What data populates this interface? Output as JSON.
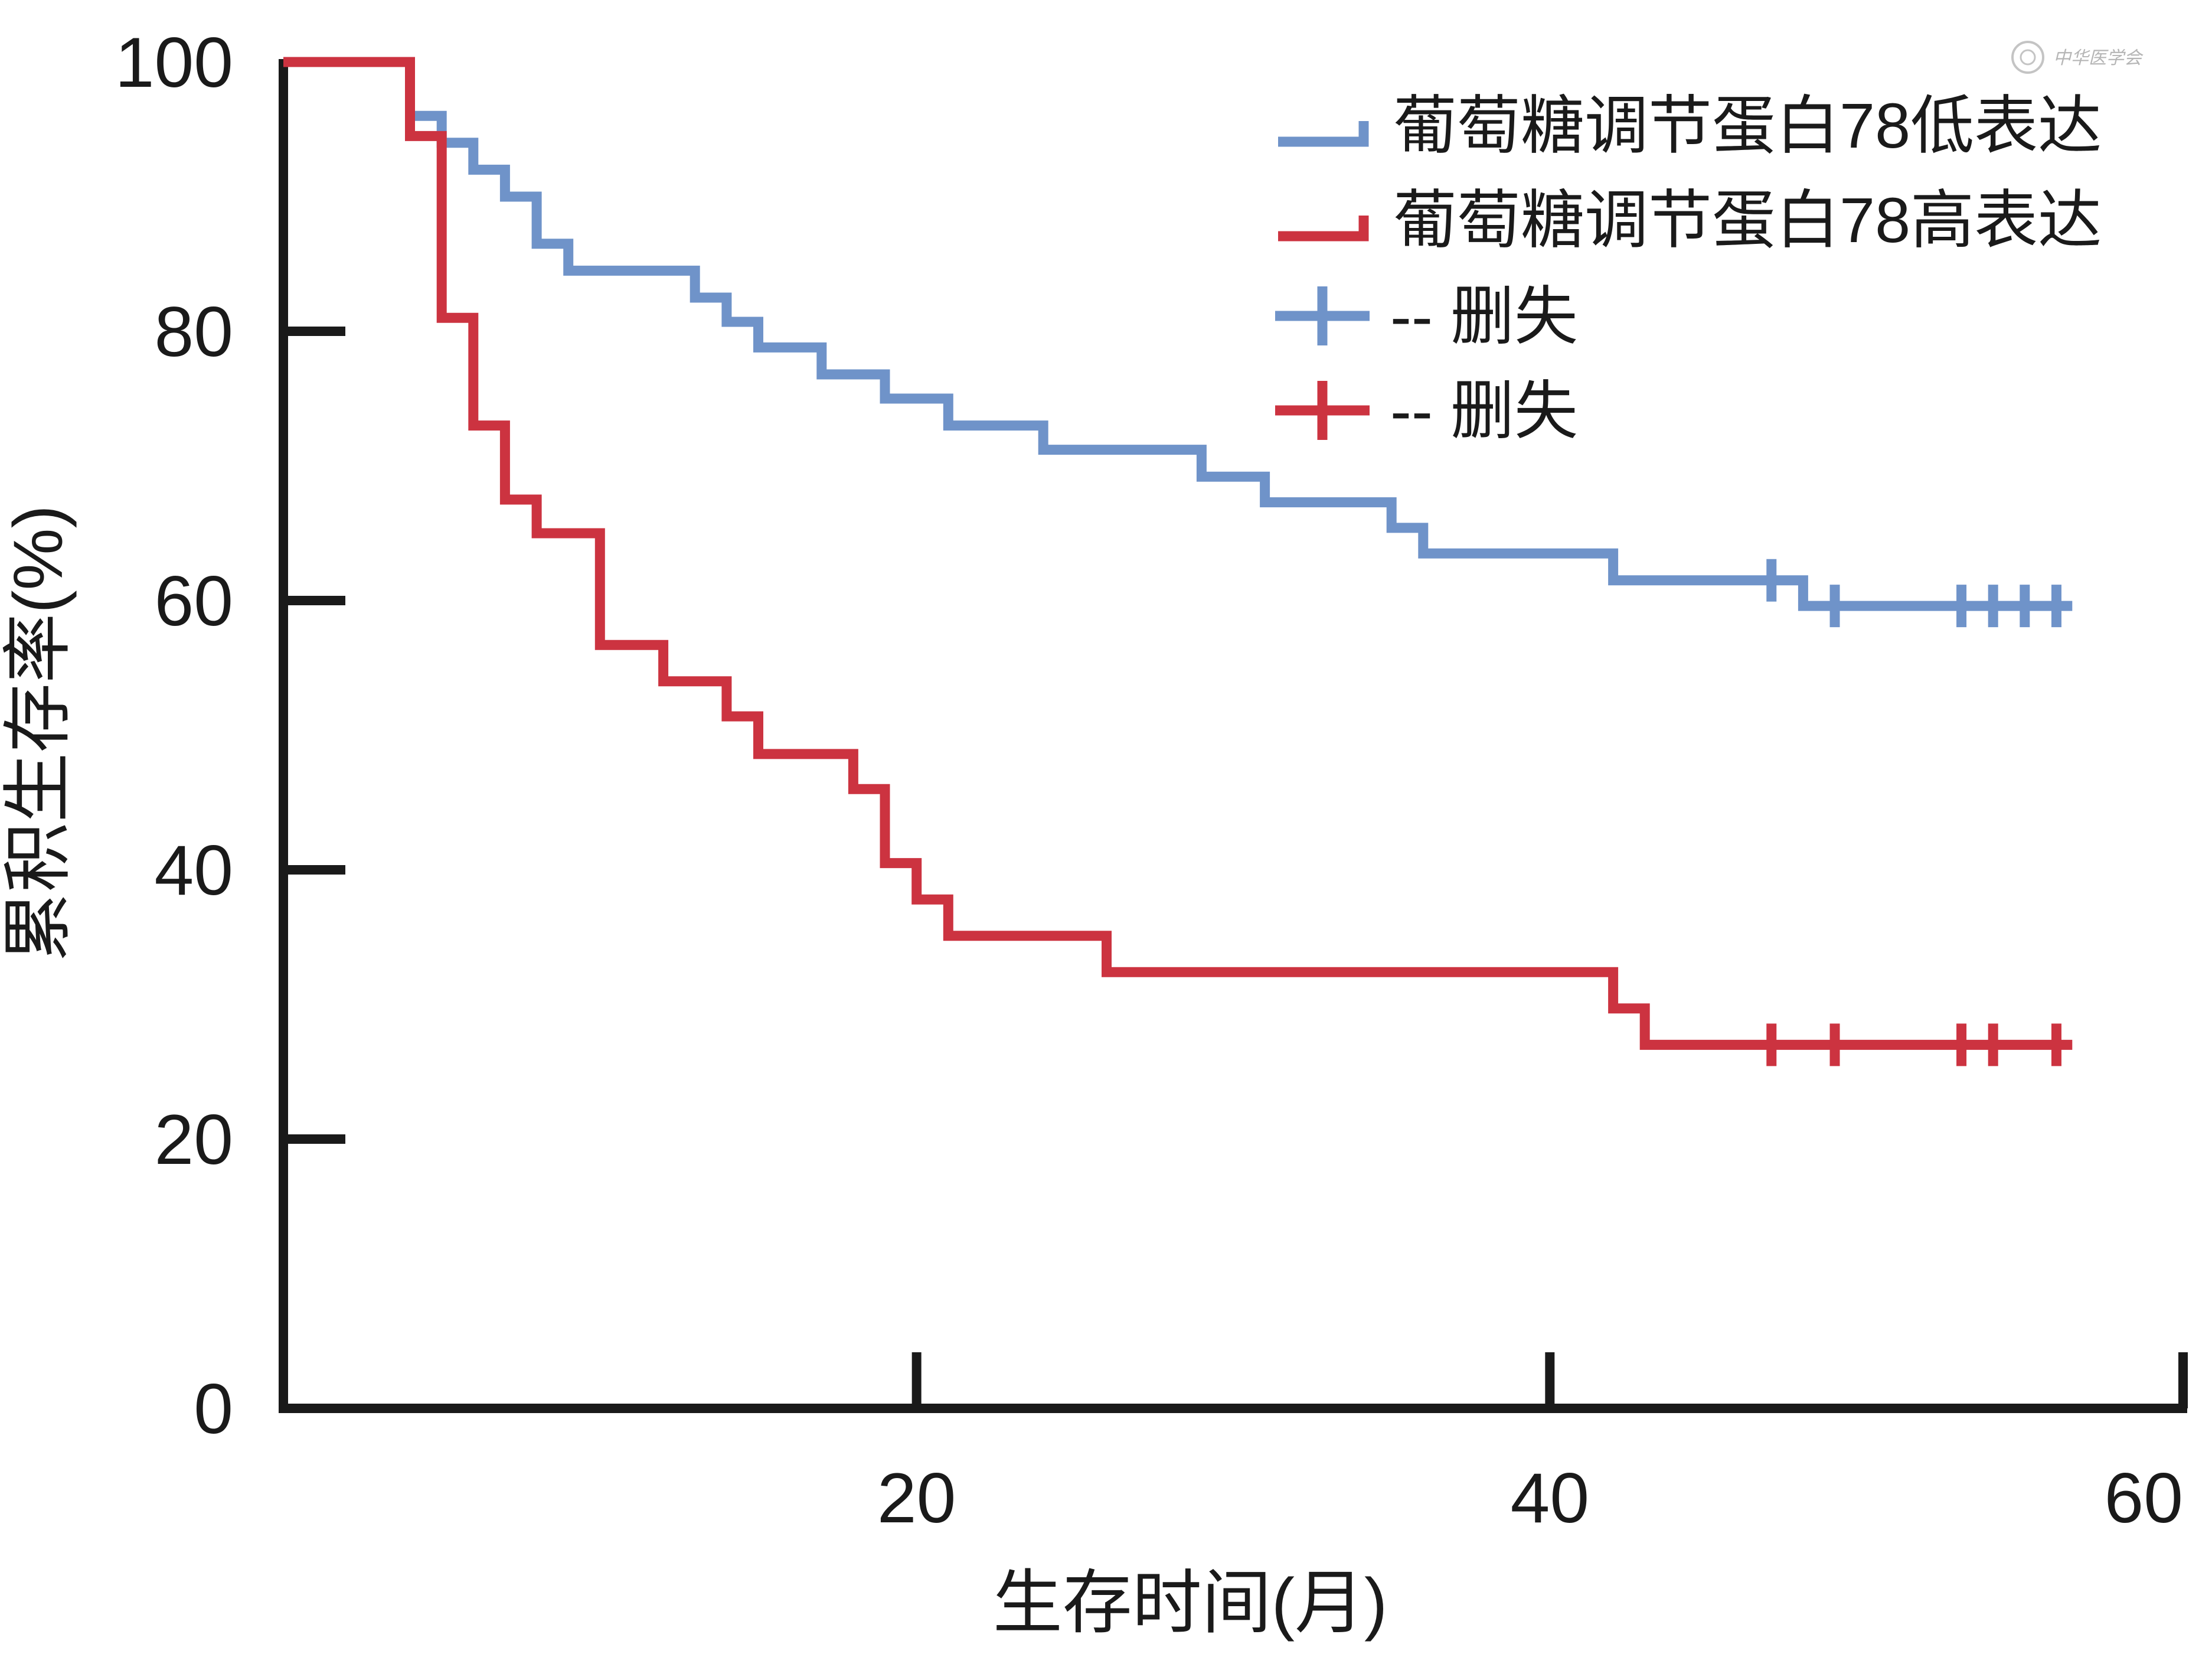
{
  "chart_data": {
    "type": "line",
    "xlabel": "生存时间(月)",
    "ylabel": "累积生存率(%)",
    "xlim": [
      0,
      60
    ],
    "ylim": [
      0,
      100
    ],
    "x_ticks": [
      20,
      40,
      60
    ],
    "y_ticks": [
      0,
      20,
      40,
      60,
      80,
      100
    ],
    "x_tick_labels": [
      "20",
      "40",
      "60"
    ],
    "y_tick_labels": [
      "0",
      "20",
      "40",
      "60",
      "80",
      "100"
    ],
    "grid": false,
    "legend_position": "top-right",
    "series": [
      {
        "name": "葡萄糖调节蛋白78低表达",
        "color": "#6f93c9",
        "steps": [
          [
            0,
            100
          ],
          [
            4,
            100
          ],
          [
            4,
            96
          ],
          [
            5,
            96
          ],
          [
            5,
            94
          ],
          [
            6,
            94
          ],
          [
            6,
            92
          ],
          [
            7,
            92
          ],
          [
            7,
            90
          ],
          [
            8,
            90
          ],
          [
            8,
            86.5
          ],
          [
            9,
            86.5
          ],
          [
            9,
            84.5
          ],
          [
            13,
            84.5
          ],
          [
            13,
            82.5
          ],
          [
            14,
            82.5
          ],
          [
            14,
            80.7
          ],
          [
            15,
            80.7
          ],
          [
            15,
            78.8
          ],
          [
            17,
            78.8
          ],
          [
            17,
            76.8
          ],
          [
            19,
            76.8
          ],
          [
            19,
            75
          ],
          [
            21,
            75
          ],
          [
            21,
            73
          ],
          [
            24,
            73
          ],
          [
            24,
            71.2
          ],
          [
            29,
            71.2
          ],
          [
            29,
            69.2
          ],
          [
            31,
            69.2
          ],
          [
            31,
            67.3
          ],
          [
            35,
            67.3
          ],
          [
            35,
            65.4
          ],
          [
            36,
            65.4
          ],
          [
            36,
            63.5
          ],
          [
            42,
            63.5
          ],
          [
            42,
            61.5
          ],
          [
            48,
            61.5
          ],
          [
            48,
            59.6
          ],
          [
            56.5,
            59.6
          ]
        ],
        "censored": [
          [
            47,
            61.5
          ],
          [
            49,
            59.6
          ],
          [
            53,
            59.6
          ],
          [
            54,
            59.6
          ],
          [
            55,
            59.6
          ],
          [
            56,
            59.6
          ]
        ]
      },
      {
        "name": "葡萄糖调节蛋白78高表达",
        "color": "#cc3340",
        "steps": [
          [
            0,
            100
          ],
          [
            4,
            100
          ],
          [
            4,
            94.5
          ],
          [
            5,
            94.5
          ],
          [
            5,
            81
          ],
          [
            6,
            81
          ],
          [
            6,
            73
          ],
          [
            7,
            73
          ],
          [
            7,
            67.5
          ],
          [
            8,
            67.5
          ],
          [
            8,
            65
          ],
          [
            10,
            65
          ],
          [
            10,
            56.7
          ],
          [
            12,
            56.7
          ],
          [
            12,
            54
          ],
          [
            14,
            54
          ],
          [
            14,
            51.4
          ],
          [
            15,
            51.4
          ],
          [
            15,
            48.6
          ],
          [
            18,
            48.6
          ],
          [
            18,
            46
          ],
          [
            19,
            46
          ],
          [
            19,
            40.5
          ],
          [
            20,
            40.5
          ],
          [
            20,
            37.8
          ],
          [
            21,
            37.8
          ],
          [
            21,
            35.1
          ],
          [
            26,
            35.1
          ],
          [
            26,
            32.4
          ],
          [
            42,
            32.4
          ],
          [
            42,
            29.7
          ],
          [
            43,
            29.7
          ],
          [
            43,
            27
          ],
          [
            56.5,
            27
          ]
        ],
        "censored": [
          [
            47,
            27
          ],
          [
            49,
            27
          ],
          [
            53,
            27
          ],
          [
            54,
            27
          ],
          [
            56,
            27
          ]
        ]
      }
    ]
  },
  "legend": {
    "items": [
      {
        "marker": "step",
        "color": "#6f93c9",
        "label": "葡萄糖调节蛋白78低表达"
      },
      {
        "marker": "step",
        "color": "#cc3340",
        "label": "葡萄糖调节蛋白78高表达"
      },
      {
        "marker": "plus",
        "color": "#6f93c9",
        "label": "-- 删失"
      },
      {
        "marker": "plus",
        "color": "#cc3340",
        "label": "-- 删失"
      }
    ]
  }
}
